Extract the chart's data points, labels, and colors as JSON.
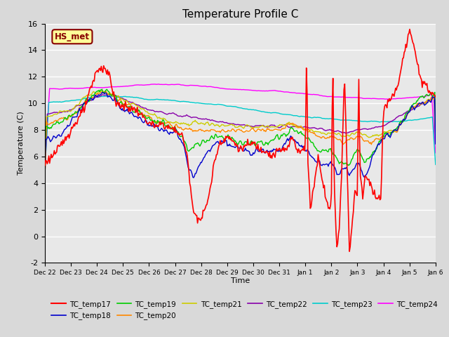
{
  "title": "Temperature Profile C",
  "xlabel": "Time",
  "ylabel": "Temperature (C)",
  "ylim": [
    -2,
    16
  ],
  "yticks": [
    -2,
    0,
    2,
    4,
    6,
    8,
    10,
    12,
    14,
    16
  ],
  "x_labels": [
    "Dec 22",
    "Dec 23",
    "Dec 24",
    "Dec 25",
    "Dec 26",
    "Dec 27",
    "Dec 28",
    "Dec 29",
    "Dec 30",
    "Dec 31",
    "Jan 1",
    "Jan 2",
    "Jan 3",
    "Jan 4",
    "Jan 5",
    "Jan 6"
  ],
  "series_colors": {
    "TC_temp17": "#ff0000",
    "TC_temp18": "#0000cc",
    "TC_temp19": "#00cc00",
    "TC_temp20": "#ff8800",
    "TC_temp21": "#cccc00",
    "TC_temp22": "#8800aa",
    "TC_temp23": "#00cccc",
    "TC_temp24": "#ff00ff"
  },
  "annotation_text": "HS_met",
  "annotation_color": "#880000",
  "annotation_bg": "#ffff99",
  "background_color": "#d9d9d9",
  "plot_bg": "#e8e8e8",
  "grid_color": "#ffffff",
  "title_fontsize": 11,
  "axis_fontsize": 8,
  "n_points": 500
}
